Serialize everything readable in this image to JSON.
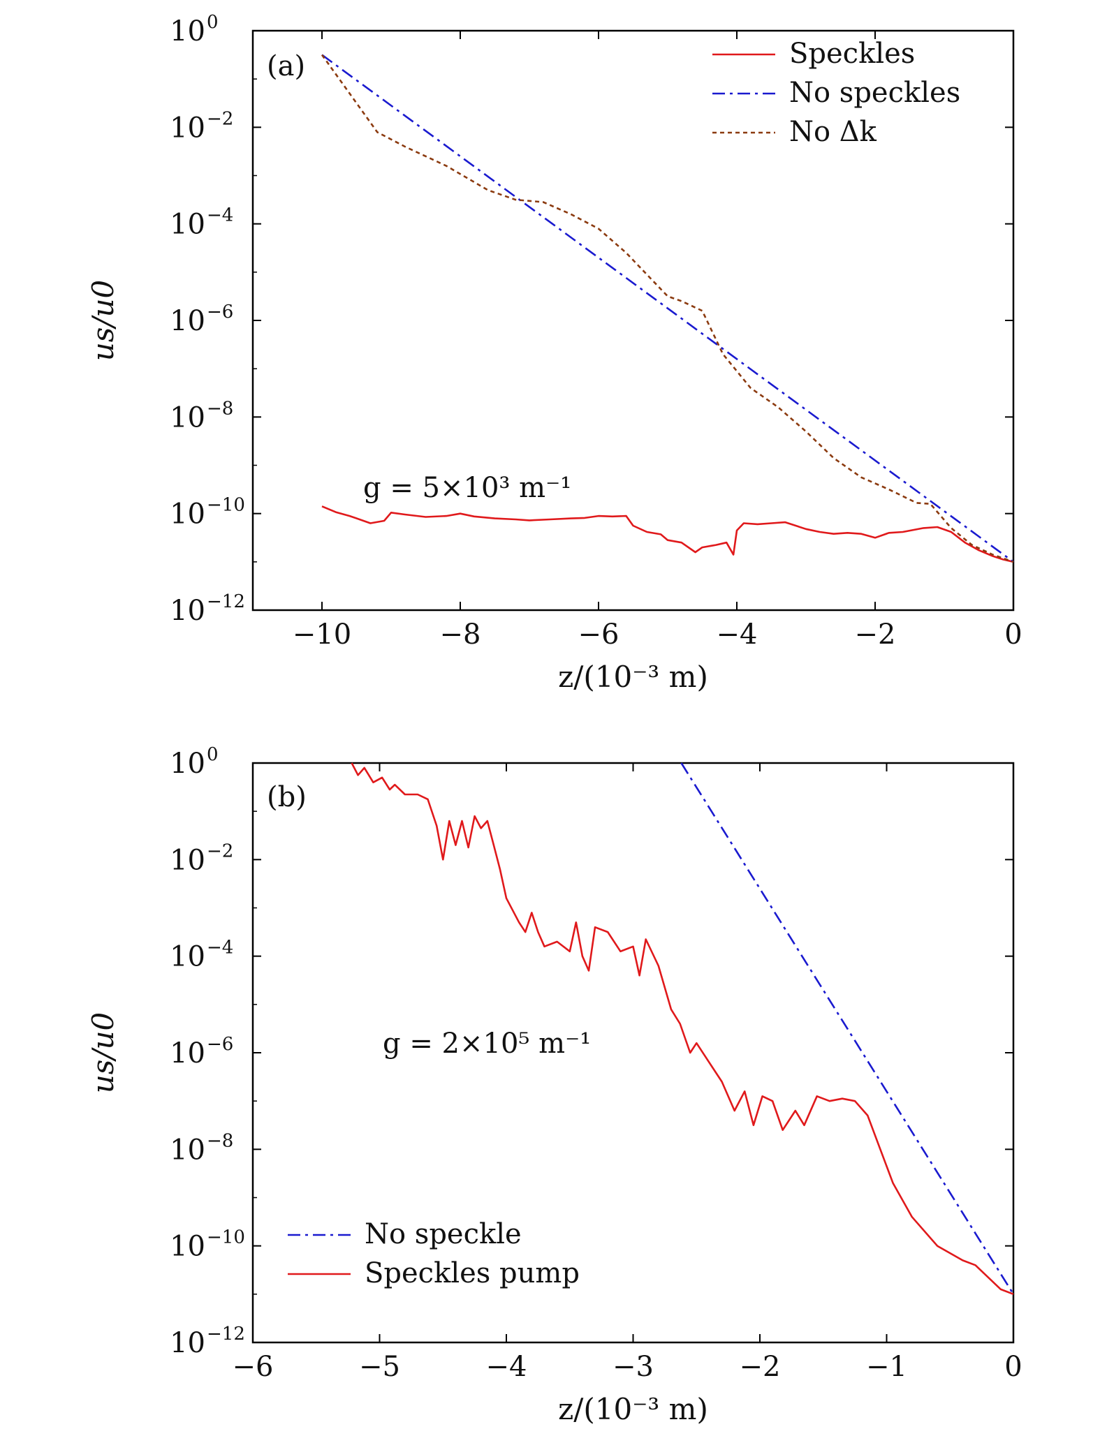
{
  "chart_data": [
    {
      "type": "line",
      "panel_label": "(a)",
      "xlabel": "z/(10⁻³ m)",
      "ylabel": "us/u0",
      "y_scale": "log",
      "xlim": [
        -11,
        0
      ],
      "ylim_exponent": [
        -12,
        0
      ],
      "x_ticks": [
        -10,
        -8,
        -6,
        -4,
        -2,
        0
      ],
      "y_tick_exponents": [
        0,
        -2,
        -4,
        -6,
        -8,
        -10,
        -12
      ],
      "legend_position": "top-right",
      "annotation": "g = 5×10³ m⁻¹",
      "series": [
        {
          "name": "Speckles",
          "color": "#e0191b",
          "dash": "solid",
          "x": [
            -10.0,
            -9.8,
            -9.6,
            -9.4,
            -9.3,
            -9.1,
            -9.0,
            -8.8,
            -8.5,
            -8.2,
            -8.0,
            -7.8,
            -7.5,
            -7.2,
            -7.0,
            -6.7,
            -6.4,
            -6.2,
            -6.0,
            -5.8,
            -5.6,
            -5.5,
            -5.3,
            -5.1,
            -5.0,
            -4.8,
            -4.6,
            -4.5,
            -4.3,
            -4.15,
            -4.05,
            -4.0,
            -3.9,
            -3.7,
            -3.5,
            -3.3,
            -3.0,
            -2.8,
            -2.6,
            -2.4,
            -2.2,
            -2.0,
            -1.8,
            -1.6,
            -1.3,
            -1.1,
            -0.9,
            -0.7,
            -0.5,
            -0.3,
            -0.15,
            0.0
          ],
          "y_log10": [
            -9.85,
            -9.97,
            -10.05,
            -10.15,
            -10.2,
            -10.15,
            -9.98,
            -10.02,
            -10.07,
            -10.05,
            -10.0,
            -10.06,
            -10.1,
            -10.12,
            -10.14,
            -10.12,
            -10.1,
            -10.09,
            -10.05,
            -10.06,
            -10.05,
            -10.25,
            -10.38,
            -10.43,
            -10.55,
            -10.6,
            -10.8,
            -10.7,
            -10.65,
            -10.6,
            -10.85,
            -10.35,
            -10.2,
            -10.22,
            -10.2,
            -10.18,
            -10.32,
            -10.38,
            -10.42,
            -10.4,
            -10.42,
            -10.5,
            -10.4,
            -10.38,
            -10.3,
            -10.28,
            -10.38,
            -10.6,
            -10.76,
            -10.88,
            -10.95,
            -11.0
          ]
        },
        {
          "name": "No speckles",
          "color": "#1a1acf",
          "dash": "dashdot",
          "x": [
            -10.0,
            0.0
          ],
          "y_log10": [
            -0.5,
            -11.0
          ]
        },
        {
          "name": "No Δk",
          "color": "#8b3a0f",
          "dash": "dotted",
          "x": [
            -10.0,
            -9.6,
            -9.2,
            -8.8,
            -8.2,
            -7.6,
            -7.2,
            -6.8,
            -6.4,
            -6.0,
            -5.6,
            -5.2,
            -5.0,
            -4.8,
            -4.5,
            -4.2,
            -3.8,
            -3.4,
            -3.0,
            -2.6,
            -2.2,
            -1.8,
            -1.4,
            -1.2,
            -0.9,
            -0.6,
            -0.3,
            0.0
          ],
          "y_log10": [
            -0.5,
            -1.3,
            -2.1,
            -2.4,
            -2.8,
            -3.3,
            -3.5,
            -3.55,
            -3.8,
            -4.1,
            -4.6,
            -5.2,
            -5.5,
            -5.6,
            -5.8,
            -6.7,
            -7.4,
            -7.8,
            -8.3,
            -8.85,
            -9.25,
            -9.5,
            -9.78,
            -9.8,
            -10.3,
            -10.65,
            -10.85,
            -11.0
          ]
        }
      ]
    },
    {
      "type": "line",
      "panel_label": "(b)",
      "xlabel": "z/(10⁻³ m)",
      "ylabel": "us/u0",
      "y_scale": "log",
      "xlim": [
        -6,
        0
      ],
      "ylim_exponent": [
        -12,
        0
      ],
      "x_ticks": [
        -6,
        -5,
        -4,
        -3,
        -2,
        -1,
        0
      ],
      "y_tick_exponents": [
        0,
        -2,
        -4,
        -6,
        -8,
        -10,
        -12
      ],
      "legend_position": "bottom-left",
      "annotation": "g = 2×10⁵ m⁻¹",
      "series": [
        {
          "name": "No speckle",
          "color": "#1a1acf",
          "dash": "dashdot",
          "x": [
            -2.62,
            0.0
          ],
          "y_log10": [
            0.0,
            -11.0
          ]
        },
        {
          "name": "Speckles pump",
          "color": "#e0191b",
          "dash": "solid",
          "x": [
            -5.22,
            -5.17,
            -5.12,
            -5.05,
            -4.98,
            -4.92,
            -4.88,
            -4.8,
            -4.7,
            -4.62,
            -4.55,
            -4.5,
            -4.45,
            -4.4,
            -4.35,
            -4.3,
            -4.25,
            -4.2,
            -4.15,
            -4.1,
            -4.05,
            -4.0,
            -3.9,
            -3.85,
            -3.8,
            -3.75,
            -3.7,
            -3.6,
            -3.5,
            -3.45,
            -3.4,
            -3.35,
            -3.3,
            -3.2,
            -3.1,
            -3.0,
            -2.95,
            -2.9,
            -2.8,
            -2.7,
            -2.63,
            -2.55,
            -2.5,
            -2.4,
            -2.3,
            -2.2,
            -2.12,
            -2.05,
            -1.98,
            -1.9,
            -1.82,
            -1.72,
            -1.65,
            -1.55,
            -1.45,
            -1.35,
            -1.25,
            -1.15,
            -1.05,
            -0.95,
            -0.8,
            -0.6,
            -0.4,
            -0.3,
            -0.2,
            -0.1,
            0.0
          ],
          "y_log10": [
            0.0,
            -0.25,
            -0.1,
            -0.4,
            -0.3,
            -0.55,
            -0.45,
            -0.65,
            -0.65,
            -0.75,
            -1.3,
            -2.0,
            -1.2,
            -1.7,
            -1.2,
            -1.75,
            -1.1,
            -1.35,
            -1.2,
            -1.7,
            -2.2,
            -2.8,
            -3.3,
            -3.5,
            -3.1,
            -3.5,
            -3.8,
            -3.7,
            -3.9,
            -3.3,
            -4.0,
            -4.3,
            -3.4,
            -3.5,
            -3.9,
            -3.8,
            -4.4,
            -3.65,
            -4.2,
            -5.1,
            -5.4,
            -6.0,
            -5.8,
            -6.2,
            -6.6,
            -7.2,
            -6.8,
            -7.5,
            -6.9,
            -7.0,
            -7.6,
            -7.2,
            -7.5,
            -6.9,
            -7.0,
            -6.95,
            -7.0,
            -7.3,
            -8.0,
            -8.7,
            -9.4,
            -10.0,
            -10.3,
            -10.4,
            -10.65,
            -10.9,
            -11.0
          ]
        }
      ]
    }
  ]
}
